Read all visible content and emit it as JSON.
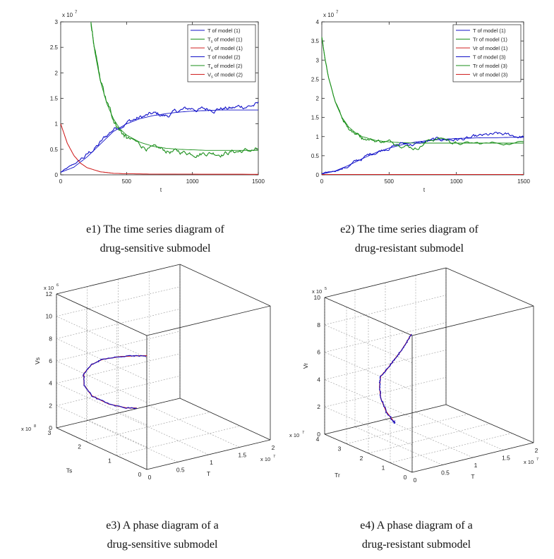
{
  "chart_data": [
    {
      "id": "e1",
      "type": "line",
      "caption": [
        "e1) The time series diagram of",
        "drug-sensitive submodel"
      ],
      "xlabel": "t",
      "ylabel": "",
      "exponent_label": "x 10",
      "exponent": "7",
      "xlim": [
        0,
        1500
      ],
      "ylim": [
        0,
        3
      ],
      "xticks": [
        "0",
        "500",
        "1000",
        "1500"
      ],
      "yticks": [
        "0",
        "0.5",
        "1",
        "1.5",
        "2",
        "2.5",
        "3"
      ],
      "legend_position": "top-right",
      "legend": [
        {
          "pre": "T",
          "sub": "",
          "post": " of model (1)",
          "color": "#1010c8"
        },
        {
          "pre": "T",
          "sub": "s",
          "post": " of model (1)",
          "color": "#1a8f1a"
        },
        {
          "pre": "V",
          "sub": "s",
          "post": " of model (1)",
          "color": "#d02020"
        },
        {
          "pre": "T",
          "sub": "",
          "post": " of model (2)",
          "color": "#1010c8"
        },
        {
          "pre": "T",
          "sub": "s",
          "post": " of model (2)",
          "color": "#1a8f1a"
        },
        {
          "pre": "V",
          "sub": "s",
          "post": " of model (2)",
          "color": "#d02020"
        }
      ],
      "series": [
        {
          "name": "T of model (1)",
          "color": "#1010c8",
          "x": [
            0,
            100,
            200,
            300,
            400,
            500,
            600,
            700,
            800,
            900,
            1000,
            1100,
            1200,
            1300,
            1400,
            1500
          ],
          "values": [
            0.05,
            0.15,
            0.35,
            0.6,
            0.85,
            1.0,
            1.1,
            1.16,
            1.2,
            1.23,
            1.25,
            1.26,
            1.27,
            1.27,
            1.27,
            1.27
          ]
        },
        {
          "name": "Ts of model (1)",
          "color": "#1a8f1a",
          "x": [
            230,
            260,
            300,
            350,
            400,
            450,
            500,
            600,
            700,
            800,
            900,
            1000,
            1100,
            1200,
            1300,
            1400,
            1500
          ],
          "values": [
            3.0,
            2.4,
            1.85,
            1.4,
            1.1,
            0.9,
            0.78,
            0.64,
            0.56,
            0.52,
            0.5,
            0.49,
            0.48,
            0.48,
            0.48,
            0.48,
            0.48
          ]
        },
        {
          "name": "Vs of model (1)",
          "color": "#d02020",
          "x": [
            0,
            50,
            100,
            150,
            200,
            300,
            400,
            500,
            700,
            1000,
            1500
          ],
          "values": [
            1.0,
            0.62,
            0.38,
            0.23,
            0.14,
            0.06,
            0.03,
            0.02,
            0.015,
            0.012,
            0.01
          ]
        },
        {
          "name": "T of model (2)",
          "color": "#1010c8",
          "noisy": true,
          "x": [
            0,
            100,
            200,
            300,
            400,
            500,
            600,
            700,
            800,
            900,
            1000,
            1100,
            1200,
            1300,
            1400,
            1500
          ],
          "values": [
            0.05,
            0.2,
            0.38,
            0.62,
            0.9,
            1.05,
            1.12,
            1.18,
            1.15,
            1.25,
            1.3,
            1.28,
            1.32,
            1.3,
            1.35,
            1.38
          ]
        },
        {
          "name": "Ts of model (2)",
          "color": "#1a8f1a",
          "noisy": true,
          "x": [
            230,
            260,
            300,
            350,
            400,
            450,
            500,
            600,
            700,
            800,
            900,
            1000,
            1100,
            1200,
            1300,
            1400,
            1500
          ],
          "values": [
            3.0,
            2.4,
            1.85,
            1.4,
            1.1,
            0.88,
            0.72,
            0.58,
            0.5,
            0.46,
            0.44,
            0.44,
            0.45,
            0.44,
            0.46,
            0.47,
            0.48
          ]
        },
        {
          "name": "Vs of model (2)",
          "color": "#d02020",
          "x": [
            0,
            50,
            100,
            150,
            200,
            300,
            400,
            500,
            700,
            1000,
            1500
          ],
          "values": [
            1.0,
            0.62,
            0.38,
            0.23,
            0.14,
            0.06,
            0.03,
            0.02,
            0.015,
            0.012,
            0.01
          ]
        }
      ]
    },
    {
      "id": "e2",
      "type": "line",
      "caption": [
        "e2) The time series diagram of",
        "drug-resistant submodel"
      ],
      "xlabel": "t",
      "ylabel": "",
      "exponent_label": "x 10",
      "exponent": "7",
      "xlim": [
        0,
        1500
      ],
      "ylim": [
        0,
        4
      ],
      "xticks": [
        "0",
        "500",
        "1000",
        "1500"
      ],
      "yticks": [
        "0",
        "0.5",
        "1",
        "1.5",
        "2",
        "2.5",
        "3",
        "3.5",
        "4"
      ],
      "legend_position": "top-right",
      "legend": [
        {
          "pre": "T",
          "sub": "",
          "post": " of model (1)",
          "color": "#1010c8"
        },
        {
          "pre": "Tr",
          "sub": "",
          "post": " of model (1)",
          "color": "#1a8f1a"
        },
        {
          "pre": "Vr",
          "sub": "",
          "post": " of model (1)",
          "color": "#d02020"
        },
        {
          "pre": "T",
          "sub": "",
          "post": " of model (3)",
          "color": "#1010c8"
        },
        {
          "pre": "Tr",
          "sub": "",
          "post": " of model (3)",
          "color": "#1a8f1a"
        },
        {
          "pre": "Vr",
          "sub": "",
          "post": " of model (3)",
          "color": "#d02020"
        }
      ],
      "series": [
        {
          "name": "T of model (1)",
          "color": "#1010c8",
          "x": [
            0,
            100,
            200,
            300,
            400,
            500,
            600,
            700,
            800,
            900,
            1000,
            1100,
            1200,
            1300,
            1400,
            1500
          ],
          "values": [
            0.02,
            0.1,
            0.25,
            0.42,
            0.58,
            0.7,
            0.79,
            0.86,
            0.9,
            0.93,
            0.95,
            0.96,
            0.97,
            0.97,
            0.98,
            0.98
          ]
        },
        {
          "name": "Tr of model (1)",
          "color": "#1a8f1a",
          "x": [
            0,
            25,
            50,
            100,
            150,
            200,
            250,
            300,
            400,
            500,
            600,
            700,
            800,
            900,
            1000,
            1200,
            1500
          ],
          "values": [
            3.6,
            3.0,
            2.55,
            1.9,
            1.5,
            1.25,
            1.1,
            1.0,
            0.9,
            0.86,
            0.84,
            0.83,
            0.83,
            0.83,
            0.83,
            0.83,
            0.83
          ]
        },
        {
          "name": "Vr of model (1)",
          "color": "#d02020",
          "x": [
            0,
            500,
            1000,
            1500
          ],
          "values": [
            0.01,
            0.01,
            0.01,
            0.01
          ]
        },
        {
          "name": "T of model (3)",
          "color": "#1010c8",
          "noisy": true,
          "x": [
            0,
            100,
            200,
            300,
            400,
            500,
            600,
            700,
            800,
            900,
            1000,
            1100,
            1200,
            1300,
            1400,
            1500
          ],
          "values": [
            0.02,
            0.1,
            0.24,
            0.42,
            0.6,
            0.74,
            0.82,
            0.8,
            0.88,
            0.92,
            0.93,
            0.94,
            1.0,
            1.04,
            1.02,
            1.0
          ]
        },
        {
          "name": "Tr of model (3)",
          "color": "#1a8f1a",
          "noisy": true,
          "x": [
            0,
            25,
            50,
            100,
            150,
            200,
            250,
            300,
            400,
            500,
            600,
            700,
            800,
            900,
            1000,
            1200,
            1500
          ],
          "values": [
            3.6,
            3.0,
            2.55,
            1.9,
            1.5,
            1.25,
            1.1,
            1.0,
            0.9,
            0.86,
            0.82,
            0.7,
            0.92,
            0.96,
            0.82,
            0.8,
            0.85
          ]
        },
        {
          "name": "Vr of model (3)",
          "color": "#d02020",
          "x": [
            0,
            500,
            1000,
            1500
          ],
          "values": [
            0.01,
            0.01,
            0.01,
            0.01
          ]
        }
      ]
    },
    {
      "id": "e3",
      "type": "line3d",
      "caption": [
        "e3) A phase diagram of a",
        "drug-sensitive submodel"
      ],
      "xlabel": "T",
      "ylabel": "Ts",
      "zlabel": "Vs",
      "x_exponent_label": "x 10",
      "x_exponent": "7",
      "y_exponent_label": "x 10",
      "y_exponent": "8",
      "z_exponent_label": "x 10",
      "z_exponent": "6",
      "xlim": [
        0,
        2
      ],
      "ylim": [
        0,
        3
      ],
      "zlim": [
        0,
        12
      ],
      "xticks": [
        "0",
        "0.5",
        "1",
        "1.5",
        "2"
      ],
      "yticks": [
        "0",
        "1",
        "2",
        "3"
      ],
      "zticks": [
        "0",
        "2",
        "4",
        "6",
        "8",
        "10",
        "12"
      ],
      "series": [
        {
          "name": "model (1)",
          "color": "#d02020",
          "x": [
            0.05,
            0.05,
            0.05,
            0.06,
            0.08,
            0.15,
            0.3,
            0.5,
            0.8,
            1.1,
            1.3
          ],
          "y": [
            0.1,
            0.5,
            1.0,
            1.6,
            2.0,
            2.4,
            2.7,
            2.85,
            2.9,
            2.95,
            3.0
          ],
          "z": [
            10.0,
            9.5,
            8.8,
            7.8,
            6.8,
            5.4,
            3.8,
            2.4,
            1.2,
            0.4,
            0.05
          ]
        },
        {
          "name": "model (2)",
          "color": "#1010c8",
          "noisy": true,
          "x": [
            0.05,
            0.05,
            0.05,
            0.06,
            0.08,
            0.15,
            0.3,
            0.5,
            0.8,
            1.1,
            1.3
          ],
          "y": [
            0.1,
            0.5,
            1.0,
            1.6,
            2.0,
            2.4,
            2.7,
            2.85,
            2.9,
            2.95,
            3.0
          ],
          "z": [
            10.0,
            9.5,
            8.8,
            7.8,
            6.8,
            5.4,
            3.8,
            2.4,
            1.2,
            0.4,
            0.05
          ]
        }
      ]
    },
    {
      "id": "e4",
      "type": "line3d",
      "caption": [
        "e4) A phase diagram of a",
        "drug-resistant submodel"
      ],
      "xlabel": "T",
      "ylabel": "Tr",
      "zlabel": "Vr",
      "x_exponent_label": "x 10",
      "x_exponent": "7",
      "y_exponent_label": "x 10",
      "y_exponent": "7",
      "z_exponent_label": "x 10",
      "z_exponent": "5",
      "xlim": [
        0,
        2
      ],
      "ylim": [
        0,
        4
      ],
      "zlim": [
        0,
        10
      ],
      "xticks": [
        "0",
        "0.5",
        "1",
        "1.5",
        "2"
      ],
      "yticks": [
        "0",
        "1",
        "2",
        "3",
        "4"
      ],
      "zticks": [
        "0",
        "2",
        "4",
        "6",
        "8",
        "10"
      ],
      "series": [
        {
          "name": "model (1)",
          "color": "#d02020",
          "x": [
            0.02,
            0.02,
            0.03,
            0.05,
            0.1,
            0.2,
            0.4,
            0.6,
            0.8,
            0.95,
            1.0
          ],
          "y": [
            0.1,
            0.3,
            0.6,
            1.0,
            1.4,
            2.0,
            2.6,
            3.1,
            3.4,
            3.5,
            3.55
          ],
          "z": [
            10.0,
            9.3,
            8.4,
            7.4,
            6.5,
            5.4,
            4.0,
            2.6,
            1.2,
            0.3,
            0.05
          ]
        },
        {
          "name": "model (3)",
          "color": "#1010c8",
          "noisy": true,
          "x": [
            0.02,
            0.02,
            0.03,
            0.05,
            0.1,
            0.2,
            0.4,
            0.6,
            0.8,
            0.95,
            1.0
          ],
          "y": [
            0.1,
            0.3,
            0.6,
            1.0,
            1.4,
            2.0,
            2.6,
            3.1,
            3.4,
            3.5,
            3.55
          ],
          "z": [
            10.0,
            9.3,
            8.4,
            7.4,
            6.5,
            5.4,
            4.0,
            2.6,
            1.2,
            0.3,
            0.05
          ]
        }
      ]
    }
  ]
}
